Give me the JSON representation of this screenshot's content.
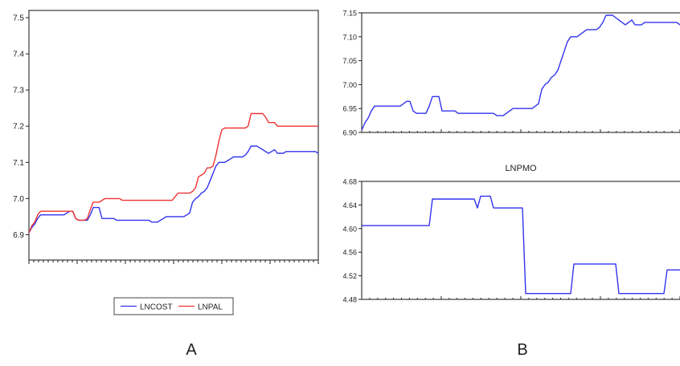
{
  "panels": {
    "a_label": "A",
    "b_label": "B"
  },
  "chart_data": [
    {
      "type": "line",
      "title": "",
      "xlabel": "",
      "ylabel": "",
      "ylim": [
        6.83,
        7.52
      ],
      "yticks": [
        6.9,
        7.0,
        7.1,
        7.2,
        7.3,
        7.4,
        7.5
      ],
      "ytick_labels": [
        "6.9",
        "7.0",
        "7.1",
        "7.2",
        "7.3",
        "7.4",
        "7.5"
      ],
      "x_count": 100,
      "legend": {
        "placement": "bottom-center"
      },
      "series": [
        {
          "name": "LNCOST",
          "color": "#3333ee",
          "values": [
            6.905,
            6.92,
            6.93,
            6.945,
            6.955,
            6.955,
            6.955,
            6.955,
            6.955,
            6.955,
            6.955,
            6.955,
            6.955,
            6.96,
            6.965,
            6.965,
            6.945,
            6.94,
            6.94,
            6.94,
            6.94,
            6.955,
            6.975,
            6.975,
            6.975,
            6.945,
            6.945,
            6.945,
            6.945,
            6.945,
            6.94,
            6.94,
            6.94,
            6.94,
            6.94,
            6.94,
            6.94,
            6.94,
            6.94,
            6.94,
            6.94,
            6.94,
            6.935,
            6.935,
            6.935,
            6.94,
            6.945,
            6.95,
            6.95,
            6.95,
            6.95,
            6.95,
            6.95,
            6.95,
            6.955,
            6.96,
            6.99,
            7.0,
            7.005,
            7.015,
            7.02,
            7.03,
            7.05,
            7.07,
            7.09,
            7.1,
            7.1,
            7.1,
            7.105,
            7.11,
            7.115,
            7.115,
            7.115,
            7.115,
            7.12,
            7.13,
            7.145,
            7.145,
            7.145,
            7.14,
            7.135,
            7.13,
            7.125,
            7.13,
            7.135,
            7.125,
            7.125,
            7.125,
            7.13,
            7.13,
            7.13,
            7.13,
            7.13,
            7.13,
            7.13,
            7.13,
            7.13,
            7.13,
            7.13,
            7.125
          ]
        },
        {
          "name": "LNPAL",
          "color": "#ee3333",
          "values": [
            6.905,
            6.925,
            6.935,
            6.955,
            6.965,
            6.965,
            6.965,
            6.965,
            6.965,
            6.965,
            6.965,
            6.965,
            6.965,
            6.965,
            6.965,
            6.965,
            6.945,
            6.94,
            6.94,
            6.94,
            6.945,
            6.97,
            6.99,
            6.99,
            6.99,
            6.995,
            7.0,
            7.0,
            7.0,
            7.0,
            7.0,
            7.0,
            6.995,
            6.995,
            6.995,
            6.995,
            6.995,
            6.995,
            6.995,
            6.995,
            6.995,
            6.995,
            6.995,
            6.995,
            6.995,
            6.995,
            6.995,
            6.995,
            6.995,
            6.995,
            7.005,
            7.015,
            7.015,
            7.015,
            7.015,
            7.015,
            7.02,
            7.03,
            7.06,
            7.065,
            7.07,
            7.085,
            7.085,
            7.09,
            7.12,
            7.16,
            7.19,
            7.195,
            7.195,
            7.195,
            7.195,
            7.195,
            7.195,
            7.195,
            7.195,
            7.2,
            7.235,
            7.235,
            7.235,
            7.235,
            7.235,
            7.225,
            7.21,
            7.21,
            7.21,
            7.2,
            7.2,
            7.2,
            7.2,
            7.2,
            7.2,
            7.2,
            7.2,
            7.2,
            7.2,
            7.2,
            7.2,
            7.2,
            7.2,
            7.2
          ]
        }
      ]
    },
    {
      "type": "line",
      "title": "",
      "xlabel": "",
      "ylabel": "",
      "ylim": [
        6.9,
        7.15
      ],
      "yticks": [
        6.9,
        6.95,
        7.0,
        7.05,
        7.1,
        7.15
      ],
      "ytick_labels": [
        "6.90",
        "6.95",
        "7.00",
        "7.05",
        "7.10",
        "7.15"
      ],
      "x_count": 100,
      "series": [
        {
          "color": "#3333ee",
          "values": [
            6.905,
            6.92,
            6.93,
            6.945,
            6.955,
            6.955,
            6.955,
            6.955,
            6.955,
            6.955,
            6.955,
            6.955,
            6.955,
            6.96,
            6.965,
            6.965,
            6.945,
            6.94,
            6.94,
            6.94,
            6.94,
            6.955,
            6.975,
            6.975,
            6.975,
            6.945,
            6.945,
            6.945,
            6.945,
            6.945,
            6.94,
            6.94,
            6.94,
            6.94,
            6.94,
            6.94,
            6.94,
            6.94,
            6.94,
            6.94,
            6.94,
            6.94,
            6.935,
            6.935,
            6.935,
            6.94,
            6.945,
            6.95,
            6.95,
            6.95,
            6.95,
            6.95,
            6.95,
            6.95,
            6.955,
            6.96,
            6.99,
            7.0,
            7.005,
            7.015,
            7.02,
            7.03,
            7.05,
            7.07,
            7.09,
            7.1,
            7.1,
            7.1,
            7.105,
            7.11,
            7.115,
            7.115,
            7.115,
            7.115,
            7.12,
            7.13,
            7.145,
            7.145,
            7.145,
            7.14,
            7.135,
            7.13,
            7.125,
            7.13,
            7.135,
            7.125,
            7.125,
            7.125,
            7.13,
            7.13,
            7.13,
            7.13,
            7.13,
            7.13,
            7.13,
            7.13,
            7.13,
            7.13,
            7.13,
            7.125
          ]
        }
      ]
    },
    {
      "type": "line",
      "title": "LNPMO",
      "xlabel": "",
      "ylabel": "",
      "ylim": [
        4.48,
        4.68
      ],
      "yticks": [
        4.48,
        4.52,
        4.56,
        4.6,
        4.64,
        4.68
      ],
      "ytick_labels": [
        "4.48",
        "4.52",
        "4.56",
        "4.60",
        "4.64",
        "4.68"
      ],
      "x_count": 100,
      "series": [
        {
          "color": "#3333ee",
          "values": [
            4.605,
            4.605,
            4.605,
            4.605,
            4.605,
            4.605,
            4.605,
            4.605,
            4.605,
            4.605,
            4.605,
            4.605,
            4.605,
            4.605,
            4.605,
            4.605,
            4.605,
            4.605,
            4.605,
            4.605,
            4.605,
            4.605,
            4.65,
            4.65,
            4.65,
            4.65,
            4.65,
            4.65,
            4.65,
            4.65,
            4.65,
            4.65,
            4.65,
            4.65,
            4.65,
            4.65,
            4.635,
            4.655,
            4.655,
            4.655,
            4.655,
            4.635,
            4.635,
            4.635,
            4.635,
            4.635,
            4.635,
            4.635,
            4.635,
            4.635,
            4.635,
            4.49,
            4.49,
            4.49,
            4.49,
            4.49,
            4.49,
            4.49,
            4.49,
            4.49,
            4.49,
            4.49,
            4.49,
            4.49,
            4.49,
            4.49,
            4.54,
            4.54,
            4.54,
            4.54,
            4.54,
            4.54,
            4.54,
            4.54,
            4.54,
            4.54,
            4.54,
            4.54,
            4.54,
            4.54,
            4.49,
            4.49,
            4.49,
            4.49,
            4.49,
            4.49,
            4.49,
            4.49,
            4.49,
            4.49,
            4.49,
            4.49,
            4.49,
            4.49,
            4.49,
            4.53,
            4.53,
            4.53,
            4.53,
            4.53
          ]
        }
      ]
    }
  ]
}
